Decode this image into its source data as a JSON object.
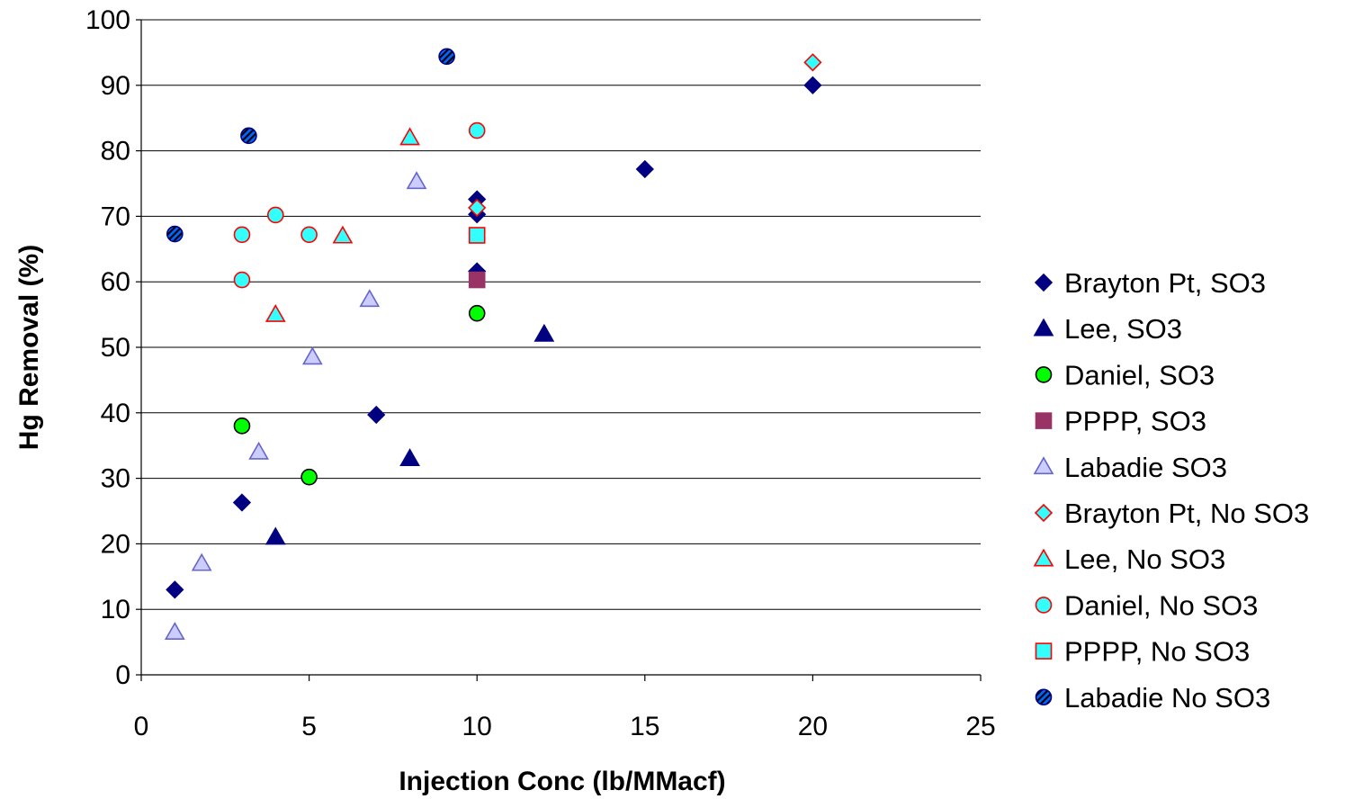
{
  "chart_data": {
    "type": "scatter",
    "title": "",
    "xlabel": "Injection Conc (lb/MMacf)",
    "ylabel": "Hg Removal (%)",
    "xlim": [
      0,
      25
    ],
    "ylim": [
      0,
      100
    ],
    "xticks": [
      0,
      5,
      10,
      15,
      20,
      25
    ],
    "yticks": [
      0,
      10,
      20,
      30,
      40,
      50,
      60,
      70,
      80,
      90,
      100
    ],
    "grid": "horizontal major gridlines",
    "legend_position": "right",
    "series": [
      {
        "name": "Brayton Pt, SO3",
        "marker": "diamond",
        "fill": "#000080",
        "stroke": "#000080",
        "points": [
          [
            1,
            13
          ],
          [
            3,
            26.3
          ],
          [
            7,
            39.7
          ],
          [
            10,
            72.6
          ],
          [
            10,
            70.3
          ],
          [
            10,
            61.6
          ],
          [
            15,
            77.2
          ],
          [
            20,
            90
          ]
        ]
      },
      {
        "name": "Lee, SO3",
        "marker": "triangle",
        "fill": "#000080",
        "stroke": "#000080",
        "points": [
          [
            4,
            21
          ],
          [
            8,
            33
          ],
          [
            12,
            52
          ]
        ]
      },
      {
        "name": "Daniel, SO3",
        "marker": "circle",
        "fill": "#00ff00",
        "stroke": "#000000",
        "points": [
          [
            3,
            38
          ],
          [
            5,
            30.2
          ],
          [
            10,
            55.2
          ]
        ]
      },
      {
        "name": "PPPP,  SO3",
        "marker": "square",
        "fill": "#993366",
        "stroke": "#993366",
        "points": [
          [
            10,
            60.3
          ]
        ]
      },
      {
        "name": "Labadie SO3",
        "marker": "triangle",
        "fill": "#ccccff",
        "stroke": "#6666cc",
        "points": [
          [
            1,
            6.5
          ],
          [
            1.8,
            17
          ],
          [
            3.5,
            34
          ],
          [
            5.1,
            48.5
          ],
          [
            6.8,
            57.3
          ],
          [
            8.2,
            75.3
          ]
        ]
      },
      {
        "name": "Brayton Pt, No SO3",
        "marker": "diamond",
        "fill": "#33ffff",
        "stroke": "#ff0000",
        "points": [
          [
            10,
            71.3
          ],
          [
            20,
            93.5
          ]
        ]
      },
      {
        "name": "Lee, No SO3",
        "marker": "triangle",
        "fill": "#33ffff",
        "stroke": "#ff0000",
        "points": [
          [
            4,
            55
          ],
          [
            6,
            67
          ],
          [
            8,
            82
          ]
        ]
      },
      {
        "name": "Daniel, No SO3",
        "marker": "circle",
        "fill": "#33ffff",
        "stroke": "#ff0000",
        "points": [
          [
            3,
            67.2
          ],
          [
            3,
            60.3
          ],
          [
            4,
            70.2
          ],
          [
            5,
            67.2
          ],
          [
            10,
            83.1
          ]
        ]
      },
      {
        "name": "PPPP, No SO3",
        "marker": "square",
        "fill": "#33ffff",
        "stroke": "#ff0000",
        "points": [
          [
            10,
            67.1
          ]
        ]
      },
      {
        "name": "Labadie No SO3",
        "marker": "hatched-circle",
        "fill": "#0066ff",
        "stroke": "#000080",
        "points": [
          [
            1,
            67.3
          ],
          [
            3.2,
            82.3
          ],
          [
            9.1,
            94.4
          ]
        ]
      }
    ]
  }
}
